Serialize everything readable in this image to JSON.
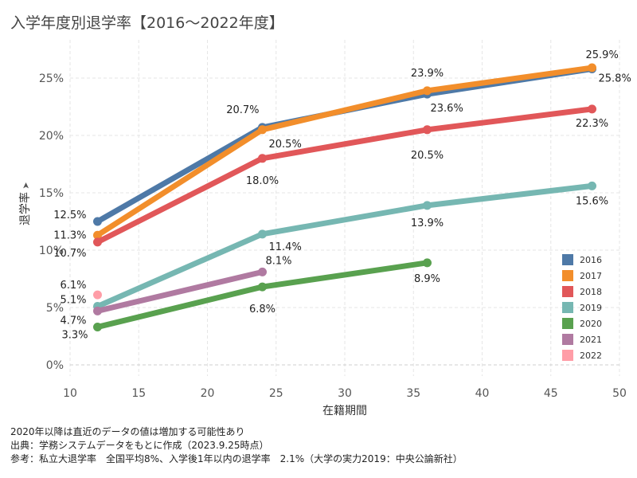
{
  "title": "入学年度別退学率【2016～2022年度】",
  "notes": [
    "2020年以降は直近のデータの値は増加する可能性あり",
    "出典：学務システムデータをもとに作成（2023.9.25時点）",
    "参考：私立大退学率　全国平均8%、入学後1年以内の退学率　2.1%（大学の実力2019：中央公論新社）"
  ],
  "chart_data": {
    "type": "line",
    "title": "入学年度別退学率【2016～2022年度】",
    "xlabel": "在籍期間",
    "ylabel": "退学率",
    "xlim": [
      10,
      50
    ],
    "ylim": [
      0,
      0.27
    ],
    "x_ticks": [
      10,
      15,
      20,
      25,
      30,
      35,
      40,
      45,
      50
    ],
    "x_tick_labels": [
      "10",
      "15",
      "20",
      "25",
      "30",
      "35",
      "40",
      "45",
      "50"
    ],
    "y_ticks": [
      0,
      0.05,
      0.1,
      0.15,
      0.2,
      0.25
    ],
    "y_tick_labels": [
      "0%",
      "5%",
      "10%",
      "15%",
      "20%",
      "25%"
    ],
    "grid": true,
    "legend_position": "right",
    "series": [
      {
        "name": "2016",
        "color": "#4e79a7",
        "points": [
          {
            "x": 12,
            "y": 0.125,
            "label": "12.5%"
          },
          {
            "x": 24,
            "y": 0.207,
            "label": "20.7%"
          },
          {
            "x": 36,
            "y": 0.236,
            "label": "23.6%"
          },
          {
            "x": 48,
            "y": 0.258,
            "label": "25.8%"
          }
        ]
      },
      {
        "name": "2017",
        "color": "#f28e2b",
        "points": [
          {
            "x": 12,
            "y": 0.113,
            "label": "11.3%"
          },
          {
            "x": 24,
            "y": 0.205,
            "label": "20.5%"
          },
          {
            "x": 36,
            "y": 0.239,
            "label": "23.9%"
          },
          {
            "x": 48,
            "y": 0.259,
            "label": "25.9%"
          }
        ]
      },
      {
        "name": "2018",
        "color": "#e15759",
        "points": [
          {
            "x": 12,
            "y": 0.107,
            "label": "10.7%"
          },
          {
            "x": 24,
            "y": 0.18,
            "label": "18.0%"
          },
          {
            "x": 36,
            "y": 0.205,
            "label": "20.5%"
          },
          {
            "x": 48,
            "y": 0.223,
            "label": "22.3%"
          }
        ]
      },
      {
        "name": "2019",
        "color": "#76b7b2",
        "points": [
          {
            "x": 12,
            "y": 0.051,
            "label": "5.1%"
          },
          {
            "x": 24,
            "y": 0.114,
            "label": "11.4%"
          },
          {
            "x": 36,
            "y": 0.139,
            "label": "13.9%"
          },
          {
            "x": 48,
            "y": 0.156,
            "label": "15.6%"
          }
        ]
      },
      {
        "name": "2020",
        "color": "#59a14f",
        "points": [
          {
            "x": 12,
            "y": 0.033,
            "label": "3.3%"
          },
          {
            "x": 24,
            "y": 0.068,
            "label": "6.8%"
          },
          {
            "x": 36,
            "y": 0.089,
            "label": "8.9%"
          }
        ]
      },
      {
        "name": "2021",
        "color": "#b07aa1",
        "points": [
          {
            "x": 12,
            "y": 0.047,
            "label": "4.7%"
          },
          {
            "x": 24,
            "y": 0.081,
            "label": "8.1%"
          }
        ]
      },
      {
        "name": "2022",
        "color": "#ff9da7",
        "points": [
          {
            "x": 12,
            "y": 0.061,
            "label": "6.1%"
          }
        ]
      }
    ]
  }
}
